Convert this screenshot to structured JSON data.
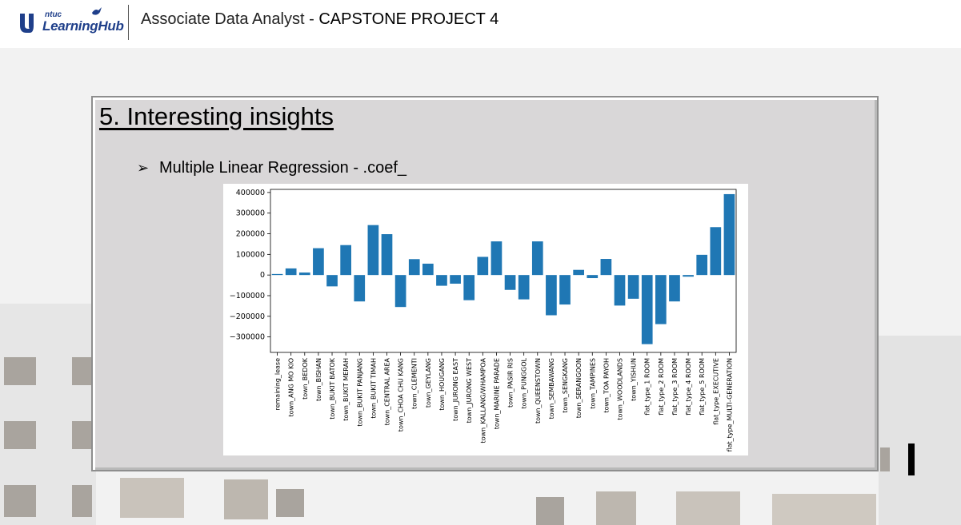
{
  "header": {
    "logo_small": "ntuc",
    "logo_text": "LearningHub",
    "title_prefix": "Associate Data Analyst - ",
    "title_bold": "CAPSTONE PROJECT 4"
  },
  "slide": {
    "heading": "5. Interesting insights",
    "bullet_glyph": "➢",
    "bullet_text": "Multiple Linear Regression - .coef_"
  },
  "colors": {
    "bar": "#1f77b4",
    "panel": "#d9d7d8",
    "brand": "#1f3f8a"
  },
  "chart_data": {
    "type": "bar",
    "categories": [
      "remaining_lease",
      "town_ANG MO KIO",
      "town_BEDOK",
      "town_BISHAN",
      "town_BUKIT BATOK",
      "town_BUKIT MERAH",
      "town_BUKIT PANJANG",
      "town_BUKIT TIMAH",
      "town_CENTRAL AREA",
      "town_CHOA CHU KANG",
      "town_CLEMENTI",
      "town_GEYLANG",
      "town_HOUGANG",
      "town_JURONG EAST",
      "town_JURONG WEST",
      "town_KALLANG/WHAMPOA",
      "town_MARINE PARADE",
      "town_PASIR RIS",
      "town_PUNGGOL",
      "town_QUEENSTOWN",
      "town_SEMBAWANG",
      "town_SENGKANG",
      "town_SERANGOON",
      "town_TAMPINES",
      "town_TOA PAYOH",
      "town_WOODLANDS",
      "town_YISHUN",
      "flat_type_1 ROOM",
      "flat_type_2 ROOM",
      "flat_type_3 ROOM",
      "flat_type_4 ROOM",
      "flat_type_5 ROOM",
      "flat_type_EXECUTIVE",
      "flat_type_MULTI-GENERATION"
    ],
    "values": [
      5000,
      32000,
      12000,
      130000,
      -55000,
      145000,
      -128000,
      242000,
      198000,
      -155000,
      77000,
      55000,
      -52000,
      -42000,
      -122000,
      88000,
      163000,
      -72000,
      -118000,
      163000,
      -195000,
      -143000,
      25000,
      -15000,
      78000,
      -148000,
      -115000,
      -335000,
      -238000,
      -128000,
      -8000,
      98000,
      232000,
      392000
    ],
    "yticks": [
      400000,
      300000,
      200000,
      100000,
      0,
      -100000,
      -200000,
      -300000
    ],
    "ytick_labels": [
      "400000",
      "300000",
      "200000",
      "100000",
      "0",
      "−100000",
      "−200000",
      "−300000"
    ],
    "ylim": [
      -375000,
      415000
    ],
    "xlabel": "",
    "ylabel": "",
    "grid": false
  }
}
